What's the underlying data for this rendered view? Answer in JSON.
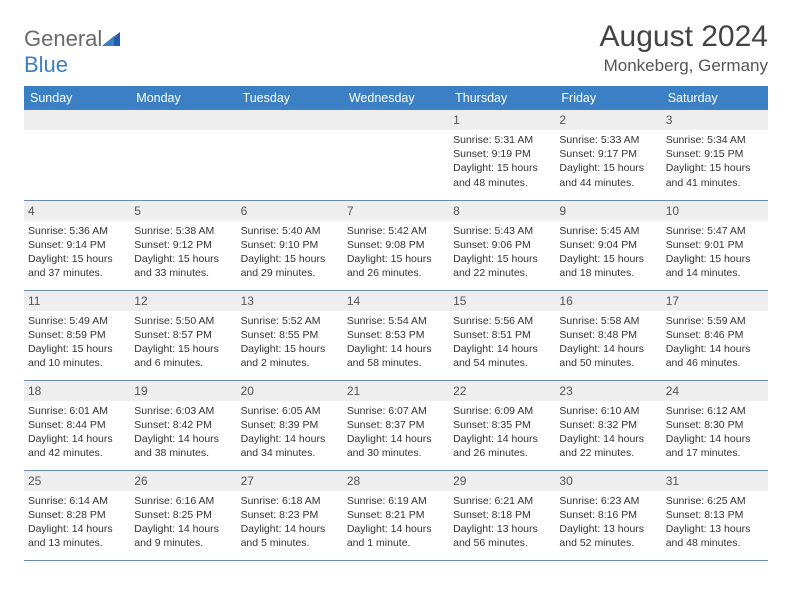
{
  "brand": {
    "part1": "General",
    "part2": "Blue"
  },
  "title": "August 2024",
  "location": "Monkeberg, Germany",
  "colors": {
    "header_bg": "#3b7fc4",
    "header_text": "#ffffff",
    "daynum_bg": "#eeeeee",
    "row_border": "#6a8bb0",
    "text": "#333333",
    "logo_gray": "#6a6a6a",
    "logo_blue": "#3b7fc4"
  },
  "weekdays": [
    "Sunday",
    "Monday",
    "Tuesday",
    "Wednesday",
    "Thursday",
    "Friday",
    "Saturday"
  ],
  "weeks": [
    [
      null,
      null,
      null,
      null,
      {
        "n": "1",
        "sr": "Sunrise: 5:31 AM",
        "ss": "Sunset: 9:19 PM",
        "dl1": "Daylight: 15 hours",
        "dl2": "and 48 minutes."
      },
      {
        "n": "2",
        "sr": "Sunrise: 5:33 AM",
        "ss": "Sunset: 9:17 PM",
        "dl1": "Daylight: 15 hours",
        "dl2": "and 44 minutes."
      },
      {
        "n": "3",
        "sr": "Sunrise: 5:34 AM",
        "ss": "Sunset: 9:15 PM",
        "dl1": "Daylight: 15 hours",
        "dl2": "and 41 minutes."
      }
    ],
    [
      {
        "n": "4",
        "sr": "Sunrise: 5:36 AM",
        "ss": "Sunset: 9:14 PM",
        "dl1": "Daylight: 15 hours",
        "dl2": "and 37 minutes."
      },
      {
        "n": "5",
        "sr": "Sunrise: 5:38 AM",
        "ss": "Sunset: 9:12 PM",
        "dl1": "Daylight: 15 hours",
        "dl2": "and 33 minutes."
      },
      {
        "n": "6",
        "sr": "Sunrise: 5:40 AM",
        "ss": "Sunset: 9:10 PM",
        "dl1": "Daylight: 15 hours",
        "dl2": "and 29 minutes."
      },
      {
        "n": "7",
        "sr": "Sunrise: 5:42 AM",
        "ss": "Sunset: 9:08 PM",
        "dl1": "Daylight: 15 hours",
        "dl2": "and 26 minutes."
      },
      {
        "n": "8",
        "sr": "Sunrise: 5:43 AM",
        "ss": "Sunset: 9:06 PM",
        "dl1": "Daylight: 15 hours",
        "dl2": "and 22 minutes."
      },
      {
        "n": "9",
        "sr": "Sunrise: 5:45 AM",
        "ss": "Sunset: 9:04 PM",
        "dl1": "Daylight: 15 hours",
        "dl2": "and 18 minutes."
      },
      {
        "n": "10",
        "sr": "Sunrise: 5:47 AM",
        "ss": "Sunset: 9:01 PM",
        "dl1": "Daylight: 15 hours",
        "dl2": "and 14 minutes."
      }
    ],
    [
      {
        "n": "11",
        "sr": "Sunrise: 5:49 AM",
        "ss": "Sunset: 8:59 PM",
        "dl1": "Daylight: 15 hours",
        "dl2": "and 10 minutes."
      },
      {
        "n": "12",
        "sr": "Sunrise: 5:50 AM",
        "ss": "Sunset: 8:57 PM",
        "dl1": "Daylight: 15 hours",
        "dl2": "and 6 minutes."
      },
      {
        "n": "13",
        "sr": "Sunrise: 5:52 AM",
        "ss": "Sunset: 8:55 PM",
        "dl1": "Daylight: 15 hours",
        "dl2": "and 2 minutes."
      },
      {
        "n": "14",
        "sr": "Sunrise: 5:54 AM",
        "ss": "Sunset: 8:53 PM",
        "dl1": "Daylight: 14 hours",
        "dl2": "and 58 minutes."
      },
      {
        "n": "15",
        "sr": "Sunrise: 5:56 AM",
        "ss": "Sunset: 8:51 PM",
        "dl1": "Daylight: 14 hours",
        "dl2": "and 54 minutes."
      },
      {
        "n": "16",
        "sr": "Sunrise: 5:58 AM",
        "ss": "Sunset: 8:48 PM",
        "dl1": "Daylight: 14 hours",
        "dl2": "and 50 minutes."
      },
      {
        "n": "17",
        "sr": "Sunrise: 5:59 AM",
        "ss": "Sunset: 8:46 PM",
        "dl1": "Daylight: 14 hours",
        "dl2": "and 46 minutes."
      }
    ],
    [
      {
        "n": "18",
        "sr": "Sunrise: 6:01 AM",
        "ss": "Sunset: 8:44 PM",
        "dl1": "Daylight: 14 hours",
        "dl2": "and 42 minutes."
      },
      {
        "n": "19",
        "sr": "Sunrise: 6:03 AM",
        "ss": "Sunset: 8:42 PM",
        "dl1": "Daylight: 14 hours",
        "dl2": "and 38 minutes."
      },
      {
        "n": "20",
        "sr": "Sunrise: 6:05 AM",
        "ss": "Sunset: 8:39 PM",
        "dl1": "Daylight: 14 hours",
        "dl2": "and 34 minutes."
      },
      {
        "n": "21",
        "sr": "Sunrise: 6:07 AM",
        "ss": "Sunset: 8:37 PM",
        "dl1": "Daylight: 14 hours",
        "dl2": "and 30 minutes."
      },
      {
        "n": "22",
        "sr": "Sunrise: 6:09 AM",
        "ss": "Sunset: 8:35 PM",
        "dl1": "Daylight: 14 hours",
        "dl2": "and 26 minutes."
      },
      {
        "n": "23",
        "sr": "Sunrise: 6:10 AM",
        "ss": "Sunset: 8:32 PM",
        "dl1": "Daylight: 14 hours",
        "dl2": "and 22 minutes."
      },
      {
        "n": "24",
        "sr": "Sunrise: 6:12 AM",
        "ss": "Sunset: 8:30 PM",
        "dl1": "Daylight: 14 hours",
        "dl2": "and 17 minutes."
      }
    ],
    [
      {
        "n": "25",
        "sr": "Sunrise: 6:14 AM",
        "ss": "Sunset: 8:28 PM",
        "dl1": "Daylight: 14 hours",
        "dl2": "and 13 minutes."
      },
      {
        "n": "26",
        "sr": "Sunrise: 6:16 AM",
        "ss": "Sunset: 8:25 PM",
        "dl1": "Daylight: 14 hours",
        "dl2": "and 9 minutes."
      },
      {
        "n": "27",
        "sr": "Sunrise: 6:18 AM",
        "ss": "Sunset: 8:23 PM",
        "dl1": "Daylight: 14 hours",
        "dl2": "and 5 minutes."
      },
      {
        "n": "28",
        "sr": "Sunrise: 6:19 AM",
        "ss": "Sunset: 8:21 PM",
        "dl1": "Daylight: 14 hours",
        "dl2": "and 1 minute."
      },
      {
        "n": "29",
        "sr": "Sunrise: 6:21 AM",
        "ss": "Sunset: 8:18 PM",
        "dl1": "Daylight: 13 hours",
        "dl2": "and 56 minutes."
      },
      {
        "n": "30",
        "sr": "Sunrise: 6:23 AM",
        "ss": "Sunset: 8:16 PM",
        "dl1": "Daylight: 13 hours",
        "dl2": "and 52 minutes."
      },
      {
        "n": "31",
        "sr": "Sunrise: 6:25 AM",
        "ss": "Sunset: 8:13 PM",
        "dl1": "Daylight: 13 hours",
        "dl2": "and 48 minutes."
      }
    ]
  ]
}
